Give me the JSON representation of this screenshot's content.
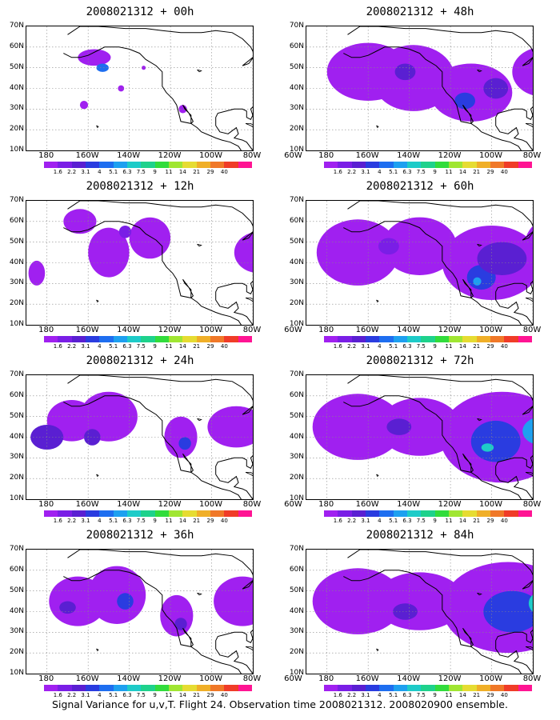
{
  "footer": "Signal Variance for u,v,T. Flight 24. Observation time 2008021312. 2008020900 ensemble.",
  "lat_labels": [
    "70N",
    "60N",
    "50N",
    "40N",
    "30N",
    "20N",
    "10N"
  ],
  "lon_labels": [
    "180",
    "160W",
    "140W",
    "120W",
    "100W",
    "80W",
    "60W"
  ],
  "colorbar": {
    "labels": [
      "1.6",
      "2.2",
      "3.1",
      "4",
      "5.1",
      "6.3",
      "7.5",
      "9",
      "11",
      "14",
      "21",
      "29",
      "40"
    ],
    "colors": [
      "#a020f0",
      "#7a1ee6",
      "#5a1fd2",
      "#2a3ce0",
      "#1e6ef0",
      "#1ea0f0",
      "#1ecbc8",
      "#1ed28c",
      "#32dc3c",
      "#a0e632",
      "#e6dc32",
      "#f0af28",
      "#f07828",
      "#f03c28",
      "#ff1493"
    ]
  },
  "panels": [
    {
      "title": "2008021312 + 00h",
      "intensity": 0
    },
    {
      "title": "2008021312 + 12h",
      "intensity": 1
    },
    {
      "title": "2008021312 + 24h",
      "intensity": 2
    },
    {
      "title": "2008021312 + 36h",
      "intensity": 3
    },
    {
      "title": "2008021312 + 48h",
      "intensity": 4
    },
    {
      "title": "2008021312 + 60h",
      "intensity": 5
    },
    {
      "title": "2008021312 + 72h",
      "intensity": 6
    },
    {
      "title": "2008021312 + 84h",
      "intensity": 7
    }
  ]
}
